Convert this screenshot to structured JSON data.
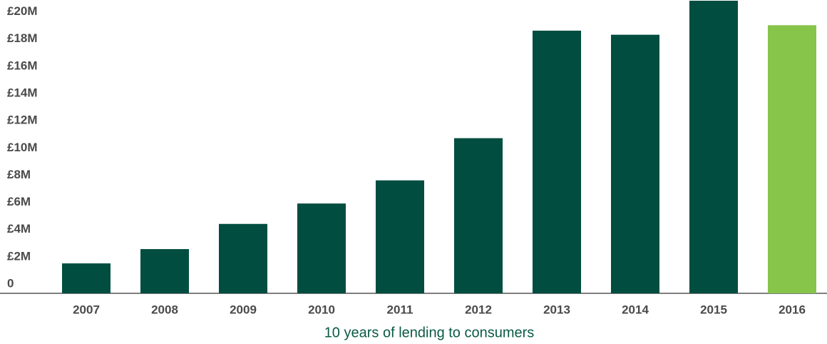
{
  "chart_data": {
    "type": "bar",
    "caption": "10 years of lending to consumers",
    "categories": [
      "2007",
      "2008",
      "2009",
      "2010",
      "2011",
      "2012",
      "2013",
      "2014",
      "2015",
      "2016"
    ],
    "values": [
      2200000,
      3250000,
      5100000,
      6600000,
      8300000,
      11400000,
      19300000,
      19000000,
      21500000,
      19700000
    ],
    "colors": [
      "#014d40",
      "#014d40",
      "#014d40",
      "#014d40",
      "#014d40",
      "#014d40",
      "#014d40",
      "#014d40",
      "#014d40",
      "#86c44a"
    ],
    "ylim": [
      0,
      21500000
    ],
    "yticks": [
      0,
      {
        "value": 2000000,
        "label": "£2M"
      },
      {
        "value": 4000000,
        "label": "£4M"
      },
      {
        "value": 6000000,
        "label": "£6M"
      },
      {
        "value": 8000000,
        "label": "£8M"
      },
      {
        "value": 10000000,
        "label": "£10M"
      },
      {
        "value": 12000000,
        "label": "£12M"
      },
      {
        "value": 14000000,
        "label": "£14M"
      },
      {
        "value": 16000000,
        "label": "£16M"
      },
      {
        "value": 18000000,
        "label": "£18M"
      },
      {
        "value": 20000000,
        "label": "£20M"
      }
    ],
    "grid": false
  }
}
